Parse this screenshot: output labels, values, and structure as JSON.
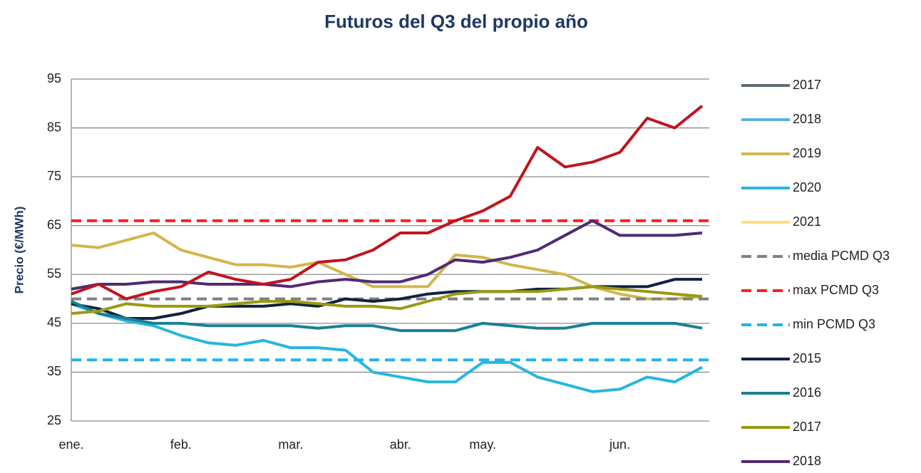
{
  "chart_data": {
    "type": "line",
    "title": "Futuros del Q3 del propio año",
    "y_label": "Precio (€/MWh)",
    "categories": [
      "ene.",
      null,
      null,
      null,
      "feb.",
      null,
      null,
      null,
      "mar.",
      null,
      null,
      null,
      "abr.",
      null,
      null,
      "may.",
      null,
      null,
      null,
      null,
      "jun.",
      null,
      null,
      null
    ],
    "ylim": [
      25,
      95
    ],
    "yticks": [
      25,
      35,
      45,
      55,
      65,
      75,
      85,
      95
    ],
    "grid": true,
    "legend": "right",
    "series": [
      {
        "name": "2017",
        "color": "#5f6b7a",
        "values": [
          null,
          null,
          null,
          null,
          null,
          null,
          null,
          null,
          null,
          null,
          null,
          null,
          null,
          null,
          null,
          null,
          null,
          null,
          null,
          null,
          null,
          null,
          null,
          null
        ]
      },
      {
        "name": "2018",
        "color": "#5bb3e0",
        "values": [
          null,
          null,
          null,
          null,
          null,
          null,
          null,
          null,
          null,
          null,
          null,
          null,
          null,
          null,
          null,
          null,
          null,
          null,
          null,
          null,
          null,
          null,
          null,
          null
        ]
      },
      {
        "name": "2019",
        "color": "#d2b64c",
        "values": [
          61,
          60.5,
          62,
          63.5,
          60,
          58.5,
          57,
          57,
          56.5,
          57.5,
          55,
          52.5,
          52.5,
          52.5,
          59,
          58.5,
          57,
          56,
          55,
          52.5,
          51,
          50,
          50,
          50.5
        ]
      },
      {
        "name": "2020",
        "color": "#27b6e0",
        "values": [
          49,
          47,
          45.5,
          44.5,
          42.5,
          41,
          40.5,
          41.5,
          40,
          40,
          39.5,
          35,
          34,
          33,
          33,
          37,
          37,
          34,
          32.5,
          31,
          31.5,
          34,
          33,
          36
        ]
      },
      {
        "name": "2021",
        "color": "#ffe07a",
        "values": [
          null,
          null,
          null,
          null,
          null,
          null,
          null,
          null,
          null,
          null,
          null,
          null,
          null,
          null,
          null,
          null,
          null,
          null,
          null,
          null,
          null,
          null,
          null,
          null
        ]
      },
      {
        "name": "media PCMD Q3",
        "color": "#808080",
        "dashed": true,
        "value": 50
      },
      {
        "name": "max PCMD Q3",
        "color": "#ff1f1f",
        "dashed": true,
        "value": 66
      },
      {
        "name": "min PCMD Q3",
        "color": "#1fb5ea",
        "dashed": true,
        "value": 37.5
      },
      {
        "name": "2015",
        "color": "#0f2340",
        "values": [
          49,
          48,
          46,
          46,
          47,
          48.5,
          48.5,
          48.5,
          49,
          48.5,
          50,
          49.5,
          50,
          51,
          51.5,
          51.5,
          51.5,
          52,
          52,
          52.5,
          52.5,
          52.5,
          54,
          54
        ]
      },
      {
        "name": "2016",
        "color": "#1b7f96",
        "values": [
          49.5,
          47,
          46,
          45,
          45,
          44.5,
          44.5,
          44.5,
          44.5,
          44,
          44.5,
          44.5,
          43.5,
          43.5,
          43.5,
          45,
          44.5,
          44,
          44,
          45,
          45,
          45,
          45,
          44
        ]
      },
      {
        "name": "2017",
        "color": "#9a9a12",
        "values": [
          47,
          47.5,
          49,
          48.5,
          48.5,
          48.5,
          49,
          49.5,
          49.5,
          49,
          48.5,
          48.5,
          48,
          49.5,
          51,
          51.5,
          51.5,
          51.5,
          52,
          52.5,
          52,
          51.5,
          51,
          50.5
        ]
      },
      {
        "name": "2018",
        "color": "#512a74",
        "values": [
          52,
          53,
          53,
          53.5,
          53.5,
          53,
          53,
          53,
          52.5,
          53.5,
          54,
          53.5,
          53.5,
          55,
          58,
          57.5,
          58.5,
          60,
          63,
          66,
          63,
          63,
          63,
          63.5
        ]
      },
      {
        "color": "#c0141e",
        "values": [
          51,
          53,
          50,
          51.5,
          52.5,
          55.5,
          54,
          53,
          54,
          57.5,
          58,
          60,
          63.5,
          63.5,
          66,
          68,
          71,
          81,
          77,
          78,
          80,
          87,
          85,
          89.5
        ]
      }
    ]
  }
}
